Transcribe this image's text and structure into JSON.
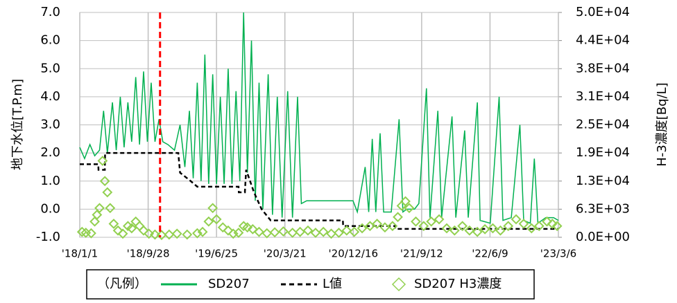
{
  "chart_data": {
    "type": "line",
    "y_label": "地下水位[T.P.m]",
    "y2_label": "H-3濃度[Bq/L]",
    "legend_title": "（凡例）",
    "xlim": [
      "2018-01-01",
      "2023-03-06"
    ],
    "xticks": [
      {
        "value": "2018-01-01",
        "label": "'18/1/1"
      },
      {
        "value": "2018-09-28",
        "label": "'18/9/28"
      },
      {
        "value": "2019-06-25",
        "label": "'19/6/25"
      },
      {
        "value": "2020-03-21",
        "label": "'20/3/21"
      },
      {
        "value": "2020-12-16",
        "label": "'20/12/16"
      },
      {
        "value": "2021-09-12",
        "label": "'21/9/12"
      },
      {
        "value": "2022-06-09",
        "label": "'22/6/9"
      },
      {
        "value": "2023-03-06",
        "label": "'23/3/6"
      }
    ],
    "ylim": [
      -1,
      7
    ],
    "yticks": [
      {
        "value": -1,
        "label": "-1.0"
      },
      {
        "value": 0,
        "label": "0.0"
      },
      {
        "value": 1,
        "label": "1.0"
      },
      {
        "value": 2,
        "label": "2.0"
      },
      {
        "value": 3,
        "label": "3.0"
      },
      {
        "value": 4,
        "label": "4.0"
      },
      {
        "value": 5,
        "label": "5.0"
      },
      {
        "value": 6,
        "label": "6.0"
      },
      {
        "value": 7,
        "label": "7.0"
      }
    ],
    "y2lim": [
      0,
      50000
    ],
    "y2ticks": [
      {
        "value": 0,
        "label": "0.0E+00"
      },
      {
        "value": 6250,
        "label": "6.3E+03"
      },
      {
        "value": 12500,
        "label": "1.3E+04"
      },
      {
        "value": 18750,
        "label": "1.9E+04"
      },
      {
        "value": 25000,
        "label": "2.5E+04"
      },
      {
        "value": 31250,
        "label": "3.1E+04"
      },
      {
        "value": 37500,
        "label": "3.8E+04"
      },
      {
        "value": 43750,
        "label": "4.4E+04"
      },
      {
        "value": 50000,
        "label": "5.0E+04"
      }
    ],
    "grid": true,
    "vline": {
      "x": "2018-11-14",
      "color": "#ff0000"
    },
    "series": [
      {
        "name": "SD207",
        "color": "#00b050",
        "style": "solid",
        "x": [
          "2018-01-01",
          "2018-01-20",
          "2018-02-10",
          "2018-03-01",
          "2018-03-20",
          "2018-04-05",
          "2018-04-20",
          "2018-05-10",
          "2018-05-25",
          "2018-06-10",
          "2018-06-25",
          "2018-07-10",
          "2018-07-25",
          "2018-08-10",
          "2018-08-25",
          "2018-09-10",
          "2018-09-25",
          "2018-10-10",
          "2018-10-25",
          "2018-11-10",
          "2018-11-25",
          "2018-12-15",
          "2019-01-10",
          "2019-02-01",
          "2019-02-20",
          "2019-03-10",
          "2019-03-25",
          "2019-04-10",
          "2019-04-25",
          "2019-05-10",
          "2019-05-25",
          "2019-06-10",
          "2019-06-25",
          "2019-07-10",
          "2019-07-25",
          "2019-08-10",
          "2019-08-25",
          "2019-09-10",
          "2019-09-25",
          "2019-10-10",
          "2019-10-25",
          "2019-11-10",
          "2019-11-25",
          "2019-12-10",
          "2019-12-25",
          "2020-01-15",
          "2020-02-01",
          "2020-02-20",
          "2020-03-10",
          "2020-04-01",
          "2020-04-20",
          "2020-05-10",
          "2020-05-25",
          "2020-06-15",
          "2020-07-15",
          "2020-08-15",
          "2020-09-15",
          "2020-10-15",
          "2020-11-15",
          "2020-12-15",
          "2021-01-01",
          "2021-02-01",
          "2021-02-15",
          "2021-03-01",
          "2021-03-15",
          "2021-04-01",
          "2021-04-15",
          "2021-05-15",
          "2021-06-15",
          "2021-06-30",
          "2021-07-15",
          "2021-08-15",
          "2021-09-01",
          "2021-10-01",
          "2021-10-15",
          "2021-11-15",
          "2021-11-30",
          "2022-01-10",
          "2022-01-25",
          "2022-03-01",
          "2022-03-15",
          "2022-04-20",
          "2022-05-01",
          "2022-06-10",
          "2022-07-15",
          "2022-07-30",
          "2022-09-01",
          "2022-10-05",
          "2022-10-20",
          "2022-11-15",
          "2022-12-01",
          "2022-12-15",
          "2023-01-15",
          "2023-02-15",
          "2023-03-06"
        ],
        "values": [
          2.2,
          1.8,
          2.3,
          1.9,
          2.1,
          3.5,
          2.0,
          3.8,
          2.1,
          4.0,
          2.2,
          3.8,
          2.4,
          4.7,
          2.3,
          4.9,
          2.4,
          4.5,
          2.4,
          3.2,
          2.4,
          2.3,
          2.1,
          3.0,
          1.5,
          3.5,
          1.1,
          4.5,
          1.0,
          5.5,
          0.9,
          4.8,
          0.9,
          4.0,
          0.9,
          5.0,
          0.9,
          4.2,
          1.0,
          7.0,
          1.3,
          6.0,
          0.3,
          4.5,
          0.0,
          4.8,
          -0.2,
          4.0,
          -0.3,
          4.2,
          -0.3,
          4.0,
          0.2,
          0.3,
          0.3,
          0.3,
          0.3,
          0.3,
          0.3,
          0.3,
          -0.1,
          1.5,
          -0.1,
          2.5,
          -0.1,
          2.7,
          -0.1,
          -0.1,
          3.2,
          -0.1,
          0.0,
          0.0,
          0.2,
          4.3,
          -0.3,
          3.5,
          -0.3,
          3.3,
          -0.3,
          2.8,
          -0.3,
          3.8,
          -0.4,
          -0.5,
          4.0,
          -0.4,
          -0.3,
          3.0,
          -0.4,
          -0.5,
          1.8,
          -0.5,
          -0.3,
          -0.3,
          -0.4
        ]
      },
      {
        "name": "L値",
        "color": "#000000",
        "style": "dashed",
        "x": [
          "2018-01-01",
          "2018-03-15",
          "2018-03-16",
          "2018-04-10",
          "2018-04-11",
          "2019-01-25",
          "2019-02-01",
          "2019-03-15",
          "2019-04-10",
          "2019-09-20",
          "2019-09-21",
          "2019-10-15",
          "2019-10-20",
          "2019-11-20",
          "2019-12-20",
          "2020-01-25",
          "2020-11-05",
          "2020-11-06",
          "2021-05-30",
          "2021-05-31",
          "2023-03-06"
        ],
        "values": [
          1.6,
          1.6,
          1.4,
          1.4,
          2.0,
          2.0,
          1.3,
          1.0,
          0.8,
          0.8,
          0.6,
          0.6,
          1.4,
          0.6,
          0.0,
          -0.4,
          -0.4,
          -0.6,
          -0.6,
          -0.7,
          -0.7
        ]
      },
      {
        "name": "SD207 H3濃度",
        "color": "#92d050",
        "style": "marker",
        "axis": "y2",
        "x": [
          "2018-01-10",
          "2018-01-25",
          "2018-02-15",
          "2018-03-01",
          "2018-03-10",
          "2018-03-20",
          "2018-04-01",
          "2018-04-10",
          "2018-04-20",
          "2018-05-01",
          "2018-05-15",
          "2018-06-01",
          "2018-06-20",
          "2018-07-10",
          "2018-07-25",
          "2018-08-10",
          "2018-08-25",
          "2018-09-10",
          "2018-10-01",
          "2018-10-25",
          "2018-11-20",
          "2018-12-20",
          "2019-01-20",
          "2019-03-01",
          "2019-04-10",
          "2019-05-01",
          "2019-05-25",
          "2019-06-10",
          "2019-06-25",
          "2019-07-20",
          "2019-08-10",
          "2019-08-30",
          "2019-09-20",
          "2019-10-10",
          "2019-10-25",
          "2019-11-15",
          "2019-12-10",
          "2020-01-10",
          "2020-02-10",
          "2020-03-15",
          "2020-04-20",
          "2020-05-20",
          "2020-06-20",
          "2020-07-20",
          "2020-08-20",
          "2020-09-20",
          "2020-10-20",
          "2020-11-20",
          "2020-12-20",
          "2021-01-20",
          "2021-02-20",
          "2021-03-20",
          "2021-04-20",
          "2021-05-20",
          "2021-06-10",
          "2021-06-25",
          "2021-07-10",
          "2021-07-25",
          "2021-08-20",
          "2021-09-20",
          "2021-10-20",
          "2021-11-20",
          "2021-12-20",
          "2022-01-20",
          "2022-02-20",
          "2022-03-20",
          "2022-04-20",
          "2022-05-20",
          "2022-06-20",
          "2022-07-20",
          "2022-08-20",
          "2022-09-20",
          "2022-10-20",
          "2022-11-20",
          "2022-12-20",
          "2023-01-20",
          "2023-02-10",
          "2023-03-01"
        ],
        "values": [
          1200,
          1000,
          900,
          3500,
          5000,
          6500,
          17000,
          12500,
          10000,
          6500,
          3000,
          1500,
          800,
          2500,
          2000,
          3500,
          2500,
          1500,
          800,
          600,
          500,
          600,
          800,
          600,
          900,
          1200,
          3500,
          6500,
          4000,
          2200,
          1500,
          800,
          1000,
          2500,
          2200,
          1800,
          1200,
          900,
          1100,
          1300,
          1000,
          1200,
          1500,
          1000,
          1200,
          800,
          1000,
          1500,
          1200,
          2000,
          2500,
          3000,
          2200,
          2500,
          4500,
          7000,
          8000,
          6500,
          3500,
          2500,
          3500,
          4000,
          2000,
          1500,
          2500,
          1500,
          1200,
          1800,
          2000,
          1500,
          2500,
          4000,
          3000,
          2000,
          2500,
          3500,
          3000,
          2500
        ]
      }
    ]
  }
}
